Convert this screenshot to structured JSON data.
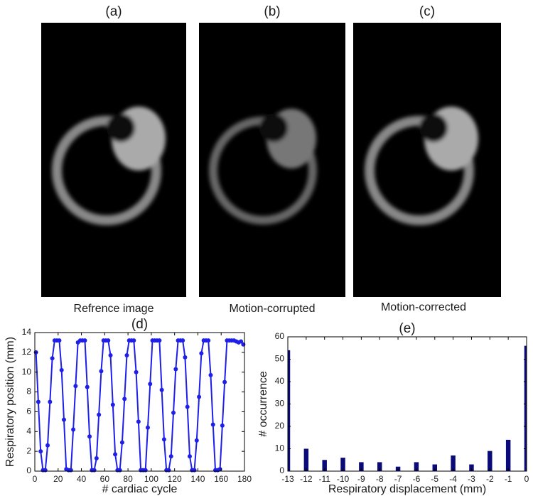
{
  "panels": [
    {
      "label": "(a)",
      "caption": "Refrence image"
    },
    {
      "label": "(b)",
      "caption": "Motion-corrupted"
    },
    {
      "label": "(c)",
      "caption": "Motion-corrected"
    }
  ],
  "chart_data": [
    {
      "type": "line",
      "title": "(d)",
      "x_label": "# cardiac cycle",
      "y_label": "Respiratory position (mm)",
      "color": "#1f1fe8",
      "x": [
        1,
        3,
        5,
        7,
        9,
        11,
        13,
        15,
        17,
        19,
        21,
        23,
        25,
        27,
        29,
        31,
        33,
        35,
        37,
        39,
        41,
        43,
        45,
        47,
        49,
        51,
        53,
        55,
        57,
        59,
        61,
        63,
        65,
        67,
        69,
        71,
        73,
        75,
        77,
        79,
        81,
        83,
        85,
        87,
        89,
        91,
        93,
        95,
        97,
        99,
        101,
        103,
        105,
        107,
        109,
        111,
        113,
        115,
        117,
        119,
        121,
        123,
        125,
        127,
        129,
        131,
        133,
        135,
        137,
        139,
        141,
        143,
        145,
        147,
        149,
        151,
        153,
        155,
        157,
        159,
        161,
        163,
        165,
        167,
        169,
        171,
        173,
        175,
        177,
        179
      ],
      "values": [
        12.0,
        7.0,
        2.0,
        0.1,
        0.1,
        2.6,
        7.0,
        11.4,
        13.2,
        13.2,
        13.2,
        10.2,
        5.2,
        0.2,
        0.1,
        0.1,
        4.2,
        8.6,
        13.0,
        13.2,
        13.2,
        13.2,
        8.5,
        3.5,
        0.1,
        0.1,
        1.3,
        5.7,
        10.1,
        13.2,
        13.2,
        13.2,
        11.7,
        6.7,
        1.7,
        0.1,
        0.1,
        2.9,
        7.3,
        11.7,
        13.2,
        13.2,
        13.2,
        10.0,
        5.0,
        0.1,
        0.1,
        0.1,
        4.4,
        8.8,
        13.2,
        13.2,
        13.2,
        13.2,
        8.2,
        3.2,
        0.1,
        0.1,
        1.5,
        5.9,
        10.3,
        13.2,
        13.2,
        13.2,
        11.5,
        6.5,
        1.5,
        0.1,
        0.1,
        3.1,
        7.5,
        11.9,
        13.2,
        13.2,
        13.2,
        9.7,
        4.7,
        0.1,
        0.1,
        0.2,
        4.6,
        9.0,
        13.2,
        13.2,
        13.2,
        13.2,
        13.1,
        13.0,
        13.1,
        12.8
      ],
      "xlim": [
        0,
        180
      ],
      "xticks": [
        0,
        20,
        40,
        60,
        80,
        100,
        120,
        140,
        160,
        180
      ],
      "ylim": [
        0,
        14
      ],
      "yticks": [
        0,
        2,
        4,
        6,
        8,
        10,
        12,
        14
      ]
    },
    {
      "type": "bar",
      "title": "(e)",
      "x_label": "Respiratory displacement (mm)",
      "y_label": "# occurrence",
      "color": "#0a0a78",
      "x": [
        -13,
        -12,
        -11,
        -10,
        -9,
        -8,
        -7,
        -6,
        -5,
        -4,
        -3,
        -2,
        -1,
        0
      ],
      "values": [
        54,
        10,
        5,
        6,
        4,
        4,
        2,
        4,
        3,
        7,
        3,
        9,
        14,
        56
      ],
      "xlim": [
        -13,
        0
      ],
      "xticks": [
        -13,
        -12,
        -11,
        -10,
        -9,
        -8,
        -7,
        -6,
        -5,
        -4,
        -3,
        -2,
        -1,
        0
      ],
      "ylim": [
        0,
        60
      ],
      "yticks": [
        0,
        10,
        20,
        30,
        40,
        50,
        60
      ]
    }
  ]
}
